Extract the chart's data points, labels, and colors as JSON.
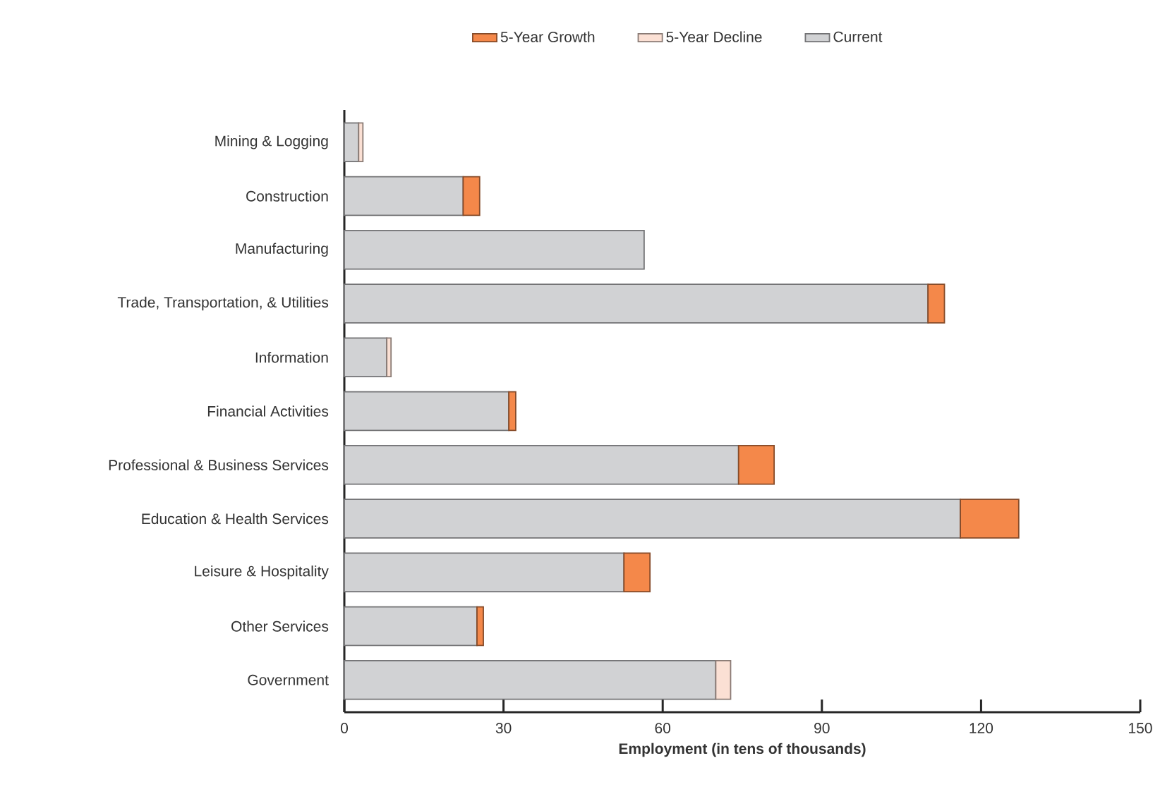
{
  "chart_data": {
    "type": "bar",
    "orientation": "horizontal",
    "stacked": true,
    "legend": "top",
    "xlabel": "Employment (in tens of thousands)",
    "categories": [
      "Mining & Logging",
      "Construction",
      "Manufacturing",
      "Trade, Transportation, & Utilities",
      "Information",
      "Financial Activities",
      "Professional & Business Services",
      "Education & Health Services",
      "Leisure & Hospitality",
      "Other Services",
      "Government"
    ],
    "series": [
      {
        "name": "Current",
        "color": "#d1d2d4",
        "values": [
          2.7,
          22.4,
          56.5,
          110,
          8.0,
          31.0,
          74.3,
          116.1,
          52.7,
          25.0,
          70.0
        ]
      },
      {
        "name": "5-Year Growth",
        "color": "#f4884a",
        "values": [
          null,
          3.1,
          null,
          3.1,
          null,
          1.3,
          6.7,
          11.0,
          4.9,
          1.2,
          null
        ]
      },
      {
        "name": "5-Year Decline",
        "color": "#fbe0d4",
        "values": [
          0.8,
          null,
          null,
          null,
          0.8,
          null,
          null,
          null,
          null,
          null,
          2.8
        ]
      }
    ],
    "xlim": [
      0,
      150
    ],
    "xticks": [
      0,
      30,
      60,
      90,
      120,
      150
    ]
  }
}
